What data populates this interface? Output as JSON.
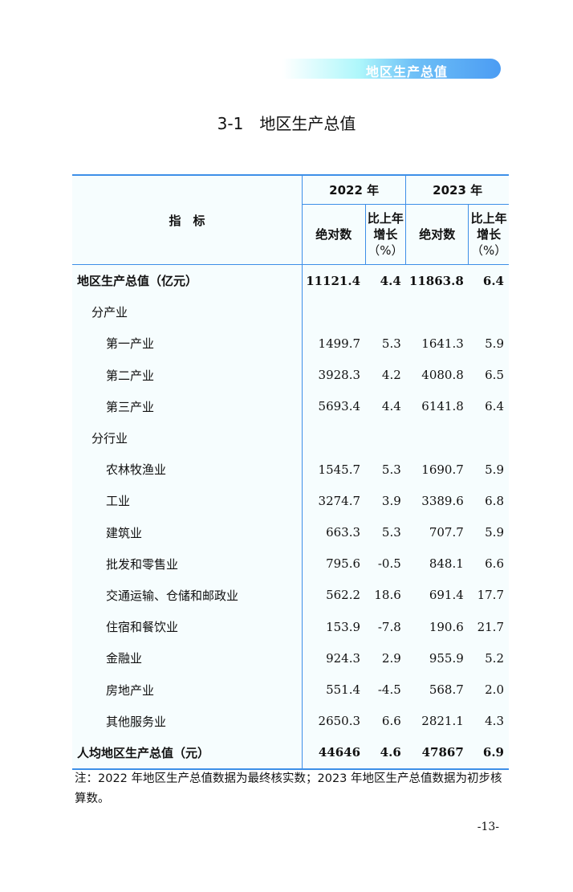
{
  "banner": "地区生产总值",
  "title": "3-1　地区生产总值",
  "header": {
    "indicator": "指　标",
    "years": [
      "2022 年",
      "2023 年"
    ],
    "abs": "绝对数",
    "growth_l1": "比上年",
    "growth_l2": "增长",
    "growth_l3": "（%）"
  },
  "rows": [
    {
      "label": "地区生产总值（亿元）",
      "level": 0,
      "v": [
        "11121.4",
        "4.4",
        "11863.8",
        "6.4"
      ]
    },
    {
      "label": "分产业",
      "level": 1,
      "v": [
        "",
        "",
        "",
        ""
      ]
    },
    {
      "label": "第一产业",
      "level": 2,
      "v": [
        "1499.7",
        "5.3",
        "1641.3",
        "5.9"
      ]
    },
    {
      "label": "第二产业",
      "level": 2,
      "v": [
        "3928.3",
        "4.2",
        "4080.8",
        "6.5"
      ]
    },
    {
      "label": "第三产业",
      "level": 2,
      "v": [
        "5693.4",
        "4.4",
        "6141.8",
        "6.4"
      ]
    },
    {
      "label": "分行业",
      "level": 1,
      "v": [
        "",
        "",
        "",
        ""
      ]
    },
    {
      "label": "农林牧渔业",
      "level": 2,
      "v": [
        "1545.7",
        "5.3",
        "1690.7",
        "5.9"
      ]
    },
    {
      "label": "工业",
      "level": 2,
      "v": [
        "3274.7",
        "3.9",
        "3389.6",
        "6.8"
      ]
    },
    {
      "label": "建筑业",
      "level": 2,
      "v": [
        "663.3",
        "5.3",
        "707.7",
        "5.9"
      ]
    },
    {
      "label": "批发和零售业",
      "level": 2,
      "v": [
        "795.6",
        "-0.5",
        "848.1",
        "6.6"
      ]
    },
    {
      "label": "交通运输、仓储和邮政业",
      "level": 2,
      "v": [
        "562.2",
        "18.6",
        "691.4",
        "17.7"
      ]
    },
    {
      "label": "住宿和餐饮业",
      "level": 2,
      "v": [
        "153.9",
        "-7.8",
        "190.6",
        "21.7"
      ]
    },
    {
      "label": "金融业",
      "level": 2,
      "v": [
        "924.3",
        "2.9",
        "955.9",
        "5.2"
      ]
    },
    {
      "label": "房地产业",
      "level": 2,
      "v": [
        "551.4",
        "-4.5",
        "568.7",
        "2.0"
      ]
    },
    {
      "label": "其他服务业",
      "level": 2,
      "v": [
        "2650.3",
        "6.6",
        "2821.1",
        "4.3"
      ]
    },
    {
      "label": "人均地区生产总值（元）",
      "level": 0,
      "v": [
        "44646",
        "4.6",
        "47867",
        "6.9"
      ]
    }
  ],
  "note": "注：2022 年地区生产总值数据为最终核实数；2023 年地区生产总值数据为初步核算数。",
  "page": "-13-",
  "colors": {
    "rule": "#3d8fe8",
    "table_bg": "#f6fdfe"
  }
}
